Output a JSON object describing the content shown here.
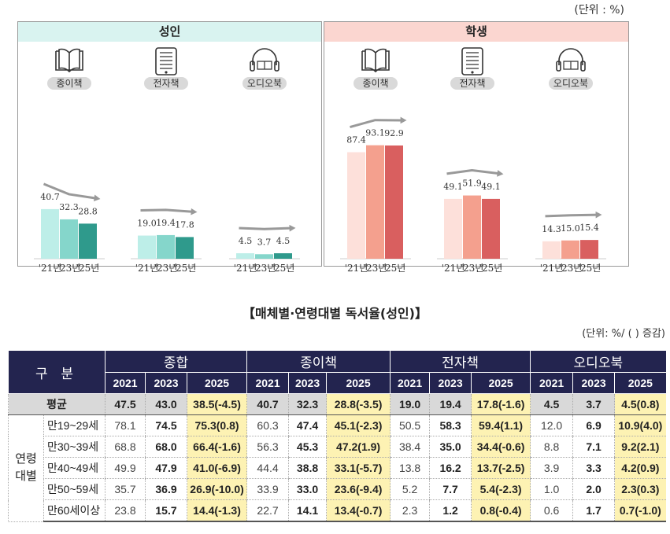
{
  "unit_top": "(단위 : %)",
  "chart_data": [
    {
      "type": "bar",
      "title": "성인",
      "colors": [
        "#bdeee8",
        "#85d6cb",
        "#2f9a8c"
      ],
      "groups": [
        {
          "label": "종이책",
          "icon": "book-icon",
          "categories": [
            "'21년",
            "'23년",
            "'25년"
          ],
          "values": [
            40.7,
            32.3,
            28.8
          ]
        },
        {
          "label": "전자책",
          "icon": "ebook-icon",
          "categories": [
            "'21년",
            "'23년",
            "'25년"
          ],
          "values": [
            19.0,
            19.4,
            17.8
          ]
        },
        {
          "label": "오디오북",
          "icon": "audiobook-icon",
          "categories": [
            "'21년",
            "'23년",
            "'25년"
          ],
          "values": [
            4.5,
            3.7,
            4.5
          ]
        }
      ]
    },
    {
      "type": "bar",
      "title": "학생",
      "colors": [
        "#fde0da",
        "#f4a08e",
        "#d95f5f"
      ],
      "groups": [
        {
          "label": "종이책",
          "icon": "book-icon",
          "categories": [
            "'21년",
            "'23년",
            "'25년"
          ],
          "values": [
            87.4,
            93.1,
            92.9
          ]
        },
        {
          "label": "전자책",
          "icon": "ebook-icon",
          "categories": [
            "'21년",
            "'23년",
            "'25년"
          ],
          "values": [
            49.1,
            51.9,
            49.1
          ]
        },
        {
          "label": "오디오북",
          "icon": "audiobook-icon",
          "categories": [
            "'21년",
            "'23년",
            "'25년"
          ],
          "values": [
            14.3,
            15.0,
            15.4
          ]
        }
      ]
    }
  ],
  "table": {
    "title": "【매체별·연령대별 독서율(성인)】",
    "unit": "(단위: %/ ( ) 증감)",
    "corner": "구  분",
    "groups": [
      "종합",
      "종이책",
      "전자책",
      "오디오북"
    ],
    "years": [
      "2021",
      "2023",
      "2025"
    ],
    "age_label": "연령\n대별",
    "rows": [
      {
        "label": "평균",
        "values": [
          "47.5",
          "43.0",
          "38.5(-4.5)",
          "40.7",
          "32.3",
          "28.8(-3.5)",
          "19.0",
          "19.4",
          "17.8(-1.6)",
          "4.5",
          "3.7",
          "4.5(0.8)"
        ]
      },
      {
        "label": "만19~29세",
        "values": [
          "78.1",
          "74.5",
          "75.3(0.8)",
          "60.3",
          "47.4",
          "45.1(-2.3)",
          "50.5",
          "58.3",
          "59.4(1.1)",
          "12.0",
          "6.9",
          "10.9(4.0)"
        ]
      },
      {
        "label": "만30~39세",
        "values": [
          "68.8",
          "68.0",
          "66.4(-1.6)",
          "56.3",
          "45.3",
          "47.2(1.9)",
          "38.4",
          "35.0",
          "34.4(-0.6)",
          "8.8",
          "7.1",
          "9.2(2.1)"
        ]
      },
      {
        "label": "만40~49세",
        "values": [
          "49.9",
          "47.9",
          "41.0(-6.9)",
          "44.4",
          "38.8",
          "33.1(-5.7)",
          "13.8",
          "16.2",
          "13.7(-2.5)",
          "3.9",
          "3.3",
          "4.2(0.9)"
        ]
      },
      {
        "label": "만50~59세",
        "values": [
          "35.7",
          "36.9",
          "26.9(-10.0)",
          "33.9",
          "33.0",
          "23.6(-9.4)",
          "5.2",
          "7.7",
          "5.4(-2.3)",
          "1.0",
          "2.0",
          "2.3(0.3)"
        ]
      },
      {
        "label": "만60세이상",
        "values": [
          "23.8",
          "15.7",
          "14.4(-1.3)",
          "22.7",
          "14.1",
          "13.4(-0.7)",
          "2.3",
          "1.2",
          "0.8(-0.4)",
          "0.6",
          "1.7",
          "0.7(-1.0)"
        ]
      }
    ]
  }
}
